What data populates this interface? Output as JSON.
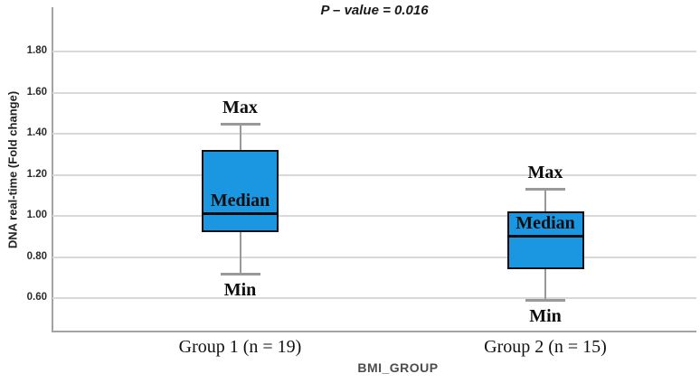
{
  "chart_data": {
    "type": "box",
    "title": "P – value = 0.016",
    "xlabel": "BMI_GROUP",
    "ylabel": "DNA real-time (Fold change)",
    "yticks": [
      "1.80",
      "1.60",
      "1.40",
      "1.20",
      "1.00",
      "0.80",
      "0.60"
    ],
    "ylim": [
      0.44,
      2.0
    ],
    "grid": true,
    "legend_position": "none",
    "annotations": {
      "max": "Max",
      "min": "Min",
      "median": "Median"
    },
    "colors": {
      "box_fill": "#1b97e1",
      "box_border": "#101010",
      "median": "#0b0b0b",
      "whisker": "#999999",
      "gridline": "#d9d9d9",
      "axis": "#a3a3a3"
    },
    "groups": [
      {
        "label": "Group 1 (n = 19)",
        "n": 19,
        "min": 0.72,
        "q1": 0.92,
        "median": 1.01,
        "q3": 1.32,
        "max": 1.45
      },
      {
        "label": "Group 2 (n = 15)",
        "n": 15,
        "min": 0.59,
        "q1": 0.74,
        "median": 0.9,
        "q3": 1.02,
        "max": 1.13
      }
    ]
  }
}
